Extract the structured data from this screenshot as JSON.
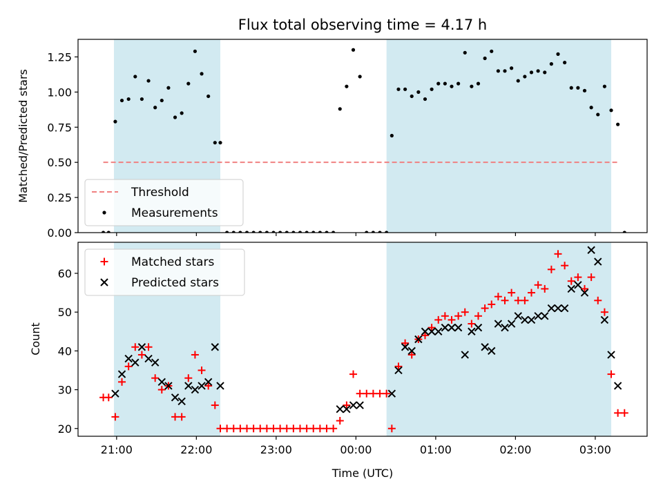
{
  "chart_data": [
    {
      "type": "scatter",
      "title": "Flux total observing time = 4.17 h",
      "ylabel": "Matched/Predicted stars",
      "xlabel": "",
      "ylim": [
        0,
        1.375
      ],
      "xlim": [
        "20:31",
        "03:39"
      ],
      "yticks": [
        {
          "value": 0,
          "label": "0.00"
        },
        {
          "value": 0.25,
          "label": "0.25"
        },
        {
          "value": 0.5,
          "label": "0.50"
        },
        {
          "value": 0.75,
          "label": "0.75"
        },
        {
          "value": 1.0,
          "label": "1.00"
        },
        {
          "value": 1.25,
          "label": "1.25"
        }
      ],
      "shaded_spans": [
        [
          "20:58",
          "22:18"
        ],
        [
          "00:23",
          "03:12"
        ]
      ],
      "shade_color": "#add8e6",
      "legend_position": "lower-left",
      "threshold": {
        "name": "Threshold",
        "value": 0.5,
        "x_range": [
          "20:50",
          "03:18"
        ],
        "color": "#f08080",
        "style": "dashed"
      },
      "series": [
        {
          "name": "Measurements",
          "marker": "dot",
          "color": "#000000",
          "points": [
            [
              "20:50",
              0.0
            ],
            [
              "20:54",
              0.0
            ],
            [
              "20:59",
              0.79
            ],
            [
              "21:04",
              0.94
            ],
            [
              "21:09",
              0.95
            ],
            [
              "21:14",
              1.11
            ],
            [
              "21:19",
              0.95
            ],
            [
              "21:24",
              1.08
            ],
            [
              "21:29",
              0.89
            ],
            [
              "21:34",
              0.94
            ],
            [
              "21:39",
              1.03
            ],
            [
              "21:44",
              0.82
            ],
            [
              "21:49",
              0.85
            ],
            [
              "21:54",
              1.06
            ],
            [
              "21:59",
              1.29
            ],
            [
              "22:04",
              1.13
            ],
            [
              "22:09",
              0.97
            ],
            [
              "22:14",
              0.64
            ],
            [
              "22:18",
              0.64
            ],
            [
              "22:23",
              0.0
            ],
            [
              "22:28",
              0.0
            ],
            [
              "22:33",
              0.0
            ],
            [
              "22:38",
              0.0
            ],
            [
              "22:43",
              0.0
            ],
            [
              "22:48",
              0.0
            ],
            [
              "22:53",
              0.0
            ],
            [
              "22:58",
              0.0
            ],
            [
              "23:03",
              0.0
            ],
            [
              "23:08",
              0.0
            ],
            [
              "23:13",
              0.0
            ],
            [
              "23:18",
              0.0
            ],
            [
              "23:23",
              0.0
            ],
            [
              "23:28",
              0.0
            ],
            [
              "23:33",
              0.0
            ],
            [
              "23:38",
              0.0
            ],
            [
              "23:43",
              0.0
            ],
            [
              "23:48",
              0.88
            ],
            [
              "23:53",
              1.04
            ],
            [
              "23:58",
              1.3
            ],
            [
              "00:03",
              1.11
            ],
            [
              "00:08",
              0.0
            ],
            [
              "00:13",
              0.0
            ],
            [
              "00:18",
              0.0
            ],
            [
              "00:23",
              0.0
            ],
            [
              "00:27",
              0.69
            ],
            [
              "00:32",
              1.02
            ],
            [
              "00:37",
              1.02
            ],
            [
              "00:42",
              0.97
            ],
            [
              "00:47",
              1.0
            ],
            [
              "00:52",
              0.95
            ],
            [
              "00:57",
              1.02
            ],
            [
              "01:02",
              1.06
            ],
            [
              "01:07",
              1.06
            ],
            [
              "01:12",
              1.04
            ],
            [
              "01:17",
              1.06
            ],
            [
              "01:22",
              1.28
            ],
            [
              "01:27",
              1.04
            ],
            [
              "01:32",
              1.06
            ],
            [
              "01:37",
              1.24
            ],
            [
              "01:42",
              1.29
            ],
            [
              "01:47",
              1.15
            ],
            [
              "01:52",
              1.15
            ],
            [
              "01:57",
              1.17
            ],
            [
              "02:02",
              1.08
            ],
            [
              "02:07",
              1.11
            ],
            [
              "02:12",
              1.14
            ],
            [
              "02:17",
              1.15
            ],
            [
              "02:22",
              1.14
            ],
            [
              "02:27",
              1.2
            ],
            [
              "02:32",
              1.27
            ],
            [
              "02:37",
              1.21
            ],
            [
              "02:42",
              1.03
            ],
            [
              "02:47",
              1.03
            ],
            [
              "02:52",
              1.01
            ],
            [
              "02:57",
              0.89
            ],
            [
              "03:02",
              0.84
            ],
            [
              "03:07",
              1.04
            ],
            [
              "03:12",
              0.87
            ],
            [
              "03:17",
              0.77
            ],
            [
              "03:22",
              0.0
            ]
          ]
        }
      ]
    },
    {
      "type": "scatter",
      "title": "",
      "ylabel": "Count",
      "xlabel": "Time (UTC)",
      "ylim": [
        18,
        68
      ],
      "xlim": [
        "20:31",
        "03:39"
      ],
      "yticks": [
        {
          "value": 20,
          "label": "20"
        },
        {
          "value": 30,
          "label": "30"
        },
        {
          "value": 40,
          "label": "40"
        },
        {
          "value": 50,
          "label": "50"
        },
        {
          "value": 60,
          "label": "60"
        }
      ],
      "xticks": [
        {
          "value": "21:00",
          "label": "21:00"
        },
        {
          "value": "22:00",
          "label": "22:00"
        },
        {
          "value": "23:00",
          "label": "23:00"
        },
        {
          "value": "00:00",
          "label": "00:00"
        },
        {
          "value": "01:00",
          "label": "01:00"
        },
        {
          "value": "02:00",
          "label": "02:00"
        },
        {
          "value": "03:00",
          "label": "03:00"
        }
      ],
      "shaded_spans": [
        [
          "20:58",
          "22:18"
        ],
        [
          "00:23",
          "03:12"
        ]
      ],
      "shade_color": "#add8e6",
      "legend_position": "upper-left",
      "series": [
        {
          "name": "Matched stars",
          "marker": "plus",
          "color": "#ff0000",
          "points": [
            [
              "20:50",
              28
            ],
            [
              "20:54",
              28
            ],
            [
              "20:59",
              23
            ],
            [
              "21:04",
              32
            ],
            [
              "21:09",
              36
            ],
            [
              "21:14",
              41
            ],
            [
              "21:19",
              39
            ],
            [
              "21:24",
              41
            ],
            [
              "21:29",
              33
            ],
            [
              "21:34",
              30
            ],
            [
              "21:39",
              31
            ],
            [
              "21:44",
              23
            ],
            [
              "21:49",
              23
            ],
            [
              "21:54",
              33
            ],
            [
              "21:59",
              39
            ],
            [
              "22:04",
              35
            ],
            [
              "22:09",
              31
            ],
            [
              "22:14",
              26
            ],
            [
              "22:18",
              20
            ],
            [
              "22:23",
              20
            ],
            [
              "22:28",
              20
            ],
            [
              "22:33",
              20
            ],
            [
              "22:38",
              20
            ],
            [
              "22:43",
              20
            ],
            [
              "22:48",
              20
            ],
            [
              "22:53",
              20
            ],
            [
              "22:58",
              20
            ],
            [
              "23:03",
              20
            ],
            [
              "23:08",
              20
            ],
            [
              "23:13",
              20
            ],
            [
              "23:18",
              20
            ],
            [
              "23:23",
              20
            ],
            [
              "23:28",
              20
            ],
            [
              "23:33",
              20
            ],
            [
              "23:38",
              20
            ],
            [
              "23:43",
              20
            ],
            [
              "23:48",
              22
            ],
            [
              "23:53",
              26
            ],
            [
              "23:58",
              34
            ],
            [
              "00:03",
              29
            ],
            [
              "00:08",
              29
            ],
            [
              "00:13",
              29
            ],
            [
              "00:18",
              29
            ],
            [
              "00:23",
              29
            ],
            [
              "00:27",
              20
            ],
            [
              "00:32",
              36
            ],
            [
              "00:37",
              42
            ],
            [
              "00:42",
              39
            ],
            [
              "00:47",
              43
            ],
            [
              "00:52",
              44
            ],
            [
              "00:57",
              46
            ],
            [
              "01:02",
              48
            ],
            [
              "01:07",
              49
            ],
            [
              "01:12",
              48
            ],
            [
              "01:17",
              49
            ],
            [
              "01:22",
              50
            ],
            [
              "01:27",
              47
            ],
            [
              "01:32",
              49
            ],
            [
              "01:37",
              51
            ],
            [
              "01:42",
              52
            ],
            [
              "01:47",
              54
            ],
            [
              "01:52",
              53
            ],
            [
              "01:57",
              55
            ],
            [
              "02:02",
              53
            ],
            [
              "02:07",
              53
            ],
            [
              "02:12",
              55
            ],
            [
              "02:17",
              57
            ],
            [
              "02:22",
              56
            ],
            [
              "02:27",
              61
            ],
            [
              "02:32",
              65
            ],
            [
              "02:37",
              62
            ],
            [
              "02:42",
              58
            ],
            [
              "02:47",
              59
            ],
            [
              "02:52",
              56
            ],
            [
              "02:57",
              59
            ],
            [
              "03:02",
              53
            ],
            [
              "03:07",
              50
            ],
            [
              "03:12",
              34
            ],
            [
              "03:17",
              24
            ],
            [
              "03:22",
              24
            ]
          ]
        },
        {
          "name": "Predicted stars",
          "marker": "cross",
          "color": "#000000",
          "points": [
            [
              "20:59",
              29
            ],
            [
              "21:04",
              34
            ],
            [
              "21:09",
              38
            ],
            [
              "21:14",
              37
            ],
            [
              "21:19",
              41
            ],
            [
              "21:24",
              38
            ],
            [
              "21:29",
              37
            ],
            [
              "21:34",
              32
            ],
            [
              "21:39",
              31
            ],
            [
              "21:44",
              28
            ],
            [
              "21:49",
              27
            ],
            [
              "21:54",
              31
            ],
            [
              "21:59",
              30
            ],
            [
              "22:04",
              31
            ],
            [
              "22:09",
              32
            ],
            [
              "22:14",
              41
            ],
            [
              "22:18",
              31
            ],
            [
              "23:48",
              25
            ],
            [
              "23:53",
              25
            ],
            [
              "23:58",
              26
            ],
            [
              "00:03",
              26
            ],
            [
              "00:27",
              29
            ],
            [
              "00:32",
              35
            ],
            [
              "00:37",
              41
            ],
            [
              "00:42",
              40
            ],
            [
              "00:47",
              43
            ],
            [
              "00:52",
              45
            ],
            [
              "00:57",
              45
            ],
            [
              "01:02",
              45
            ],
            [
              "01:07",
              46
            ],
            [
              "01:12",
              46
            ],
            [
              "01:17",
              46
            ],
            [
              "01:22",
              39
            ],
            [
              "01:27",
              45
            ],
            [
              "01:32",
              46
            ],
            [
              "01:37",
              41
            ],
            [
              "01:42",
              40
            ],
            [
              "01:47",
              47
            ],
            [
              "01:52",
              46
            ],
            [
              "01:57",
              47
            ],
            [
              "02:02",
              49
            ],
            [
              "02:07",
              48
            ],
            [
              "02:12",
              48
            ],
            [
              "02:17",
              49
            ],
            [
              "02:22",
              49
            ],
            [
              "02:27",
              51
            ],
            [
              "02:32",
              51
            ],
            [
              "02:37",
              51
            ],
            [
              "02:42",
              56
            ],
            [
              "02:47",
              57
            ],
            [
              "02:52",
              55
            ],
            [
              "02:57",
              66
            ],
            [
              "03:02",
              63
            ],
            [
              "03:07",
              48
            ],
            [
              "03:12",
              39
            ],
            [
              "03:17",
              31
            ]
          ]
        }
      ]
    }
  ]
}
